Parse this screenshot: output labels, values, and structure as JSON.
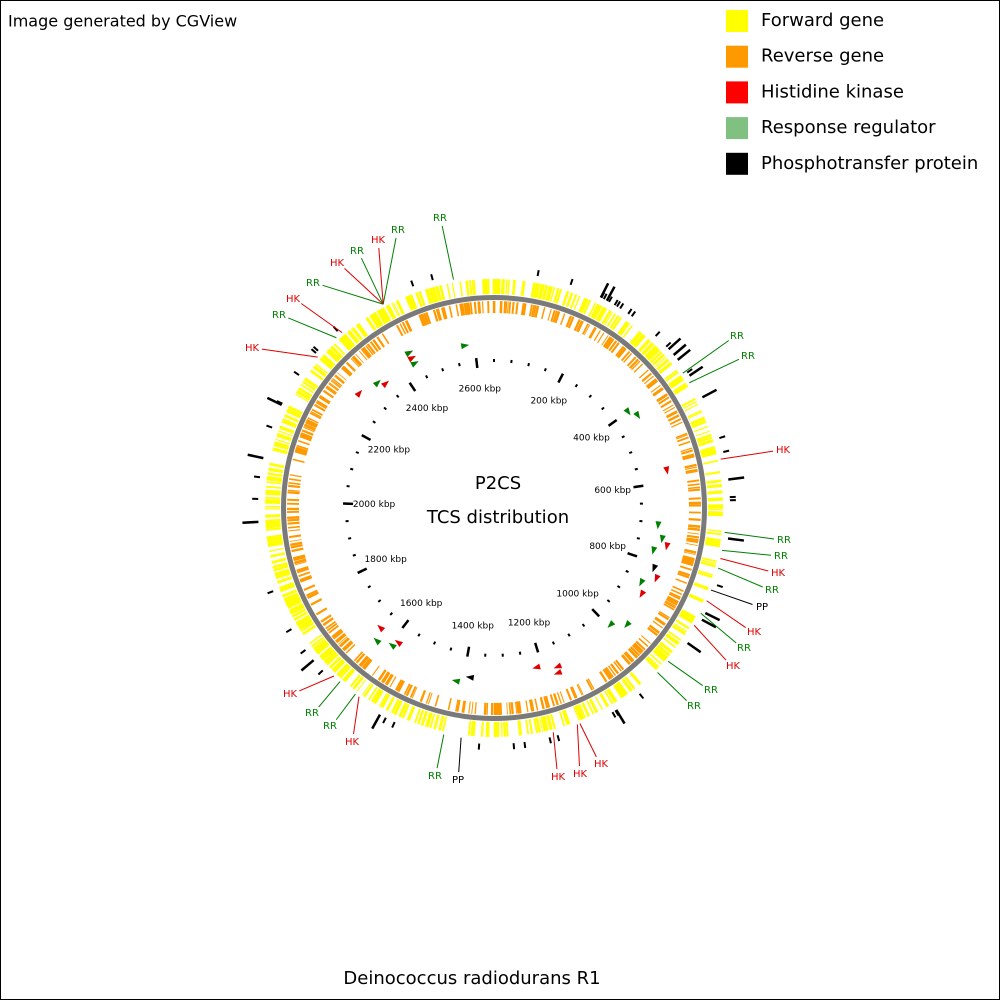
{
  "header": {
    "credit": "Image generated by CGView"
  },
  "legend": [
    {
      "label": "Forward gene",
      "color": "#ffff00"
    },
    {
      "label": "Reverse gene",
      "color": "#ff9900"
    },
    {
      "label": "Histidine kinase",
      "color": "#ff0000"
    },
    {
      "label": "Response regulator",
      "color": "#80c080"
    },
    {
      "label": "Phosphotransfer protein",
      "color": "#000000"
    }
  ],
  "center": {
    "title": "P2CS",
    "subtitle": "TCS distribution"
  },
  "caption": "Deinococcus radiodurans R1",
  "scale_kbp": [
    0,
    2650
  ],
  "ticks": [
    {
      "value": 200,
      "label": "200 kbp"
    },
    {
      "value": 400,
      "label": "400 kbp"
    },
    {
      "value": 600,
      "label": "600 kbp"
    },
    {
      "value": 800,
      "label": "800 kbp"
    },
    {
      "value": 1000,
      "label": "1000 kbp"
    },
    {
      "value": 1200,
      "label": "1200 kbp"
    },
    {
      "value": 1400,
      "label": "1400 kbp"
    },
    {
      "value": 1600,
      "label": "1600 kbp"
    },
    {
      "value": 1800,
      "label": "1800 kbp"
    },
    {
      "value": 2000,
      "label": "2000 kbp"
    },
    {
      "value": 2200,
      "label": "2200 kbp"
    },
    {
      "value": 2400,
      "label": "2400 kbp"
    },
    {
      "value": 2600,
      "label": "2600 kbp"
    }
  ],
  "features": [
    {
      "label": "RR",
      "position": 2576,
      "color": "#008000"
    },
    {
      "label": "RR",
      "position": 2440,
      "color": "#008000"
    },
    {
      "label": "HK",
      "position": 2440,
      "color": "#e00000"
    },
    {
      "label": "RR",
      "position": 2440,
      "color": "#008000"
    },
    {
      "label": "HK",
      "position": 2440,
      "color": "#e00000"
    },
    {
      "label": "RR",
      "position": 2440,
      "color": "#008000"
    },
    {
      "label": "HK",
      "position": 2349,
      "color": "#e00000"
    },
    {
      "label": "RR",
      "position": 2335,
      "color": "#008000"
    },
    {
      "label": "HK",
      "position": 2286,
      "color": "#e00000"
    },
    {
      "label": "RR",
      "position": 401,
      "color": "#008000"
    },
    {
      "label": "RR",
      "position": 422,
      "color": "#008000"
    },
    {
      "label": "HK",
      "position": 573,
      "color": "#e00000"
    },
    {
      "label": "RR",
      "position": 707,
      "color": "#008000"
    },
    {
      "label": "RR",
      "position": 740,
      "color": "#008000"
    },
    {
      "label": "HK",
      "position": 755,
      "color": "#e00000"
    },
    {
      "label": "RR",
      "position": 773,
      "color": "#008000"
    },
    {
      "label": "PP",
      "position": 815,
      "color": "#000000"
    },
    {
      "label": "HK",
      "position": 836,
      "color": "#e00000"
    },
    {
      "label": "RR",
      "position": 861,
      "color": "#008000"
    },
    {
      "label": "HK",
      "position": 886,
      "color": "#e00000"
    },
    {
      "label": "RR",
      "position": 967,
      "color": "#008000"
    },
    {
      "label": "RR",
      "position": 995,
      "color": "#008000"
    },
    {
      "label": "HK",
      "position": 1165,
      "color": "#e00000"
    },
    {
      "label": "HK",
      "position": 1170,
      "color": "#e00000"
    },
    {
      "label": "HK",
      "position": 1216,
      "color": "#e00000"
    },
    {
      "label": "PP",
      "position": 1385,
      "color": "#000000"
    },
    {
      "label": "RR",
      "position": 1417,
      "color": "#008000"
    },
    {
      "label": "HK",
      "position": 1587,
      "color": "#e00000"
    },
    {
      "label": "RR",
      "position": 1595,
      "color": "#008000"
    },
    {
      "label": "RR",
      "position": 1631,
      "color": "#008000"
    },
    {
      "label": "HK",
      "position": 1646,
      "color": "#e00000"
    }
  ]
}
